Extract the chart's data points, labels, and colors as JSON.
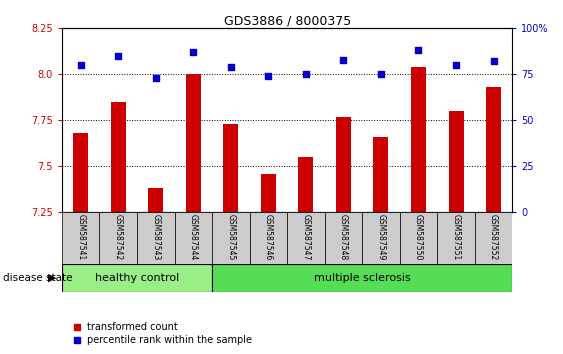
{
  "title": "GDS3886 / 8000375",
  "samples": [
    "GSM587541",
    "GSM587542",
    "GSM587543",
    "GSM587544",
    "GSM587545",
    "GSM587546",
    "GSM587547",
    "GSM587548",
    "GSM587549",
    "GSM587550",
    "GSM587551",
    "GSM587552"
  ],
  "transformed_count": [
    7.68,
    7.85,
    7.38,
    8.0,
    7.73,
    7.46,
    7.55,
    7.77,
    7.66,
    8.04,
    7.8,
    7.93
  ],
  "percentile_rank": [
    80,
    85,
    73,
    87,
    79,
    74,
    75,
    83,
    75,
    88,
    80,
    82
  ],
  "ylim_left": [
    7.25,
    8.25
  ],
  "ylim_right": [
    0,
    100
  ],
  "yticks_left": [
    7.25,
    7.5,
    7.75,
    8.0,
    8.25
  ],
  "yticks_right": [
    0,
    25,
    50,
    75,
    100
  ],
  "ytick_labels_right": [
    "0",
    "25",
    "50",
    "75",
    "100%"
  ],
  "bar_color": "#cc0000",
  "dot_color": "#0000cc",
  "healthy_color": "#99ee88",
  "ms_color": "#55dd55",
  "bar_width": 0.4,
  "legend_bar_label": "transformed count",
  "legend_dot_label": "percentile rank within the sample",
  "disease_state_label": "disease state",
  "healthy_label": "healthy control",
  "ms_label": "multiple sclerosis",
  "n_healthy": 4,
  "n_total": 12
}
